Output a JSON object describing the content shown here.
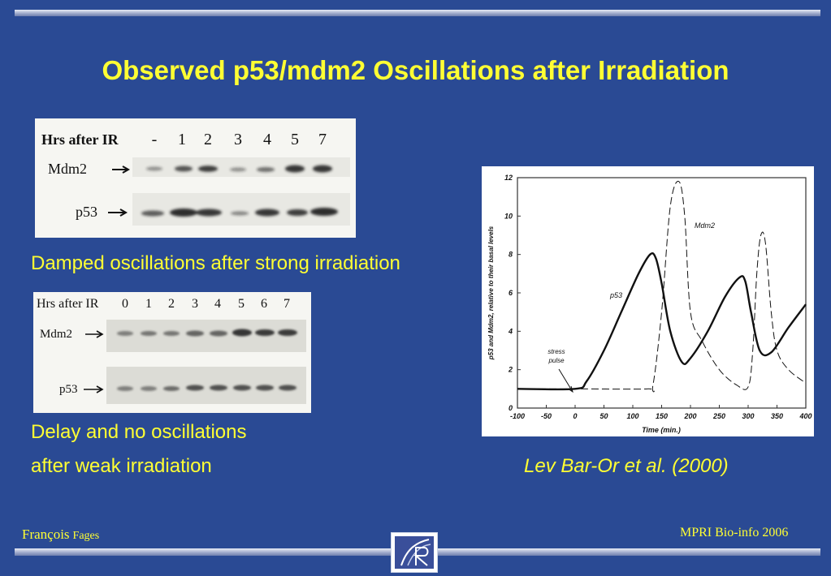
{
  "slide": {
    "title": "Observed p53/mdm2 Oscillations after Irradiation",
    "caption1": "Damped oscillations after strong irradiation",
    "caption2_line1": "Delay and no oscillations",
    "caption2_line2": "after weak irradiation",
    "citation": "Lev Bar-Or et al. (2000)",
    "footer_left_name": "François",
    "footer_left_surname": "Fages",
    "footer_right": "MPRI Bio-info  2006",
    "colors": {
      "background": "#2a4a94",
      "accent_text": "#ffff33"
    }
  },
  "blot1": {
    "header_label": "Hrs after IR",
    "lanes": [
      "-",
      "1",
      "2",
      "3",
      "4",
      "5",
      "7"
    ],
    "row_labels": [
      "Mdm2",
      "p53"
    ]
  },
  "blot2": {
    "header_label": "Hrs after IR",
    "lanes": [
      "0",
      "1",
      "2",
      "3",
      "4",
      "5",
      "6",
      "7"
    ],
    "row_labels": [
      "Mdm2",
      "p53"
    ]
  },
  "chart_data": {
    "type": "line",
    "xlabel": "Time (min.)",
    "ylabel": "p53 and Mdm2, relative to their basal levels",
    "xlim": [
      -100,
      400
    ],
    "ylim": [
      0,
      12
    ],
    "xticks": [
      -100,
      -50,
      0,
      50,
      100,
      150,
      200,
      250,
      300,
      350,
      400
    ],
    "yticks": [
      0,
      2,
      4,
      6,
      8,
      10,
      12
    ],
    "annotations": [
      "stress pulse"
    ],
    "series": [
      {
        "name": "p53",
        "style": "solid",
        "x": [
          -100,
          0,
          20,
          50,
          80,
          110,
          130,
          140,
          150,
          165,
          185,
          200,
          230,
          260,
          285,
          295,
          305,
          320,
          340,
          370,
          400
        ],
        "y": [
          1,
          1,
          1.4,
          3,
          5,
          7,
          8,
          7.8,
          6.5,
          4,
          2.4,
          2.6,
          4,
          5.8,
          6.8,
          6.6,
          5,
          3,
          2.9,
          4.2,
          5.4
        ]
      },
      {
        "name": "Mdm2",
        "style": "dashed",
        "x": [
          -100,
          0,
          125,
          135,
          150,
          165,
          180,
          190,
          200,
          220,
          250,
          280,
          300,
          308,
          315,
          322,
          330,
          340,
          350,
          370,
          400
        ],
        "y": [
          1,
          1,
          1,
          1.2,
          5,
          10.5,
          11.8,
          10,
          5,
          3.5,
          2,
          1.2,
          1.1,
          3,
          7,
          9,
          8.6,
          5,
          3,
          2,
          1.3
        ]
      }
    ]
  }
}
